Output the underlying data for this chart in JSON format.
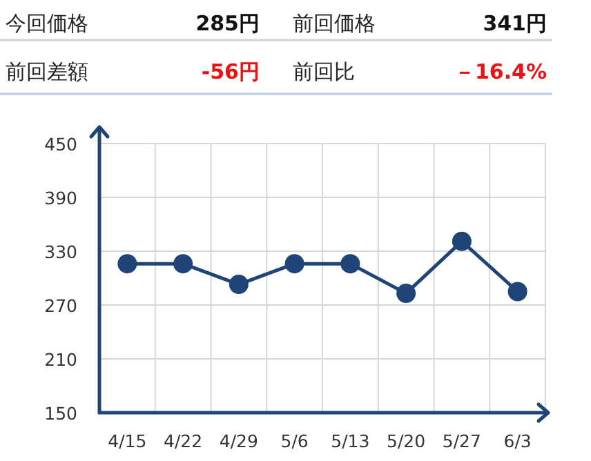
{
  "chart_data": [
    {
      "type": "other",
      "annotations": [
        "今回価格",
        "285円",
        "前回価格",
        "341円",
        "前回差額",
        "-56円",
        "前回比",
        "－16.4%"
      ],
      "colors": [
        "#222222",
        "#111111",
        "#222222",
        "#111111",
        "#222222",
        "#ee1111",
        "#222222",
        "#ee1111"
      ]
    },
    {
      "type": "line",
      "categories": [
        "4/15",
        "4/22",
        "4/29",
        "5/6",
        "5/13",
        "5/20",
        "5/27",
        "6/3"
      ],
      "series": [
        {
          "color": "#1f4478",
          "values": [
            316,
            316,
            293,
            316,
            316,
            283,
            341,
            285
          ]
        }
      ],
      "ylim": [
        150,
        450
      ],
      "yticks": [
        150,
        210,
        270,
        330,
        390,
        450
      ],
      "grid": true,
      "marker": "circle",
      "line_style": "solid"
    }
  ]
}
